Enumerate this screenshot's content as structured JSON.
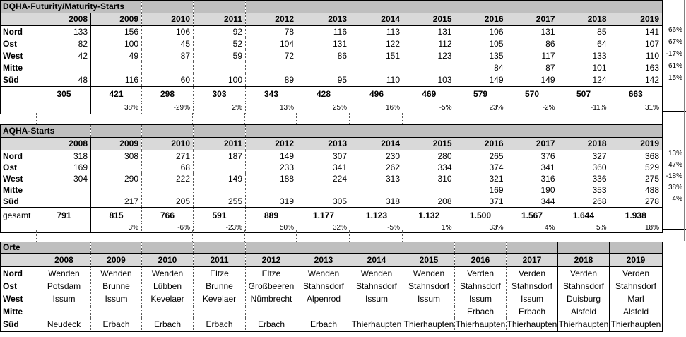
{
  "colors": {
    "section_title_bg": "#bfbfbf",
    "year_header_bg": "#d9d9d9",
    "grid_dotted": "#595959",
    "border": "#000000"
  },
  "years": [
    "2008",
    "2009",
    "2010",
    "2011",
    "2012",
    "2013",
    "2014",
    "2015",
    "2016",
    "2017",
    "2018",
    "2019"
  ],
  "sections": [
    {
      "title": "DQHA-Futurity/Maturity-Starts",
      "rows": [
        {
          "label": "Nord",
          "values": [
            "133",
            "156",
            "106",
            "92",
            "78",
            "116",
            "113",
            "131",
            "106",
            "131",
            "85",
            "141"
          ]
        },
        {
          "label": "Ost",
          "values": [
            "82",
            "100",
            "45",
            "52",
            "104",
            "131",
            "122",
            "112",
            "105",
            "86",
            "64",
            "107"
          ]
        },
        {
          "label": "West",
          "values": [
            "42",
            "49",
            "87",
            "59",
            "72",
            "86",
            "151",
            "123",
            "135",
            "117",
            "133",
            "110"
          ]
        },
        {
          "label": "Mitte",
          "values": [
            "",
            "",
            "",
            "",
            "",
            "",
            "",
            "",
            "84",
            "87",
            "101",
            "163"
          ]
        },
        {
          "label": "Süd",
          "values": [
            "48",
            "116",
            "60",
            "100",
            "89",
            "95",
            "110",
            "103",
            "149",
            "149",
            "124",
            "142"
          ]
        }
      ],
      "total_label": "",
      "totals": [
        "305",
        "421",
        "298",
        "303",
        "343",
        "428",
        "496",
        "469",
        "579",
        "570",
        "507",
        "663"
      ],
      "pct_change": [
        "",
        "38%",
        "-29%",
        "2%",
        "13%",
        "25%",
        "16%",
        "-5%",
        "23%",
        "-2%",
        "-11%",
        "31%"
      ],
      "side_pct": [
        "66%",
        "67%",
        "-17%",
        "61%",
        "15%"
      ]
    },
    {
      "title": "AQHA-Starts",
      "rows": [
        {
          "label": "Nord",
          "values": [
            "318",
            "308",
            "271",
            "187",
            "149",
            "307",
            "230",
            "280",
            "265",
            "376",
            "327",
            "368"
          ]
        },
        {
          "label": "Ost",
          "values": [
            "169",
            "",
            "68",
            "",
            "233",
            "341",
            "262",
            "334",
            "374",
            "341",
            "360",
            "529"
          ]
        },
        {
          "label": "West",
          "values": [
            "304",
            "290",
            "222",
            "149",
            "188",
            "224",
            "313",
            "310",
            "321",
            "316",
            "336",
            "275"
          ]
        },
        {
          "label": "Mitte",
          "values": [
            "",
            "",
            "",
            "",
            "",
            "",
            "",
            "",
            "169",
            "190",
            "353",
            "488"
          ]
        },
        {
          "label": "Süd",
          "values": [
            "",
            "217",
            "205",
            "255",
            "319",
            "305",
            "318",
            "208",
            "371",
            "344",
            "268",
            "278"
          ]
        }
      ],
      "total_label": "gesamt",
      "totals": [
        "791",
        "815",
        "766",
        "591",
        "889",
        "1.177",
        "1.123",
        "1.132",
        "1.500",
        "1.567",
        "1.644",
        "1.938"
      ],
      "pct_change": [
        "",
        "3%",
        "-6%",
        "-23%",
        "50%",
        "32%",
        "-5%",
        "1%",
        "33%",
        "4%",
        "5%",
        "18%"
      ],
      "side_pct": [
        "13%",
        "47%",
        "-18%",
        "38%",
        "4%"
      ]
    },
    {
      "title": "Orte",
      "rows": [
        {
          "label": "Nord",
          "values": [
            "Wenden",
            "Wenden",
            "Wenden",
            "Eltze",
            "Eltze",
            "Wenden",
            "Wenden",
            "Wenden",
            "Verden",
            "Verden",
            "Verden",
            "Verden"
          ]
        },
        {
          "label": "Ost",
          "values": [
            "Potsdam",
            "Brunne",
            "Lübben",
            "Brunne",
            "Großbeeren",
            "Stahnsdorf",
            "Stahnsdorf",
            "Stahnsdorf",
            "Stahnsdorf",
            "Stahnsdorf",
            "Stahnsdorf",
            "Stahnsdorf"
          ]
        },
        {
          "label": "West",
          "values": [
            "Issum",
            "Issum",
            "Kevelaer",
            "Kevelaer",
            "Nümbrecht",
            "Alpenrod",
            "Issum",
            "Issum",
            "Issum",
            "Issum",
            "Duisburg",
            "Marl"
          ]
        },
        {
          "label": "Mitte",
          "values": [
            "",
            "",
            "",
            "",
            "",
            "",
            "",
            "",
            "Erbach",
            "Erbach",
            "Alsfeld",
            "Alsfeld"
          ]
        },
        {
          "label": "Süd",
          "values": [
            "Neudeck",
            "Erbach",
            "Erbach",
            "Erbach",
            "Erbach",
            "Erbach",
            "Thierhaupten",
            "Thierhaupten",
            "Thierhaupten",
            "Thierhaupten",
            "Thierhaupten",
            "Thierhaupten"
          ]
        }
      ]
    }
  ]
}
